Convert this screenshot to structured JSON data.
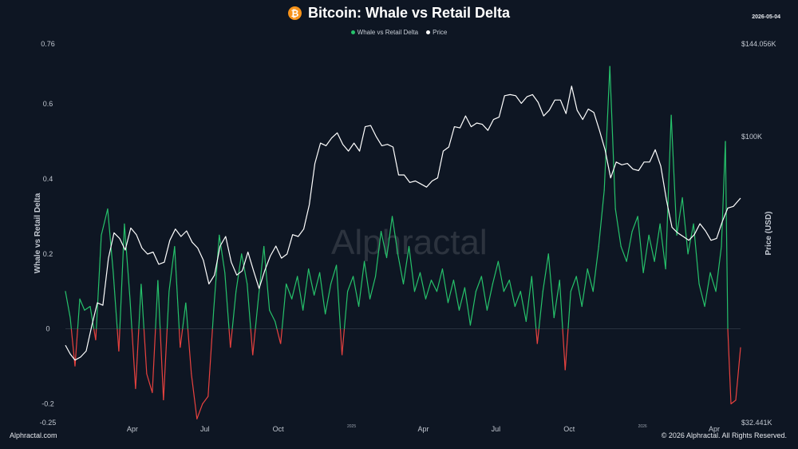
{
  "header": {
    "title": "Bitcoin: Whale vs Retail Delta",
    "date": "2026-05-04",
    "icon": "bitcoin-icon"
  },
  "legend": {
    "delta": "Whale vs Retail Delta",
    "price": "Price"
  },
  "footer": {
    "left": "Alphractal.com",
    "right": "© 2026 Alphractal. All Rights Reserved."
  },
  "watermark": "Alphractal",
  "colors": {
    "positive": "#26c26b",
    "negative": "#e8423f",
    "price": "#ffffff",
    "background": "#0e1623",
    "brand": "#f7931a"
  },
  "chart_data": {
    "type": "line",
    "title": "Bitcoin: Whale vs Retail Delta",
    "ylabel": "Whale vs Retail Delta",
    "y2label": "Price (USD)",
    "ylim": [
      -0.25,
      0.76
    ],
    "y2_scale": "log",
    "y2lim": [
      32441,
      144056
    ],
    "y_ticks": [
      "0.76",
      "0.6",
      "0.4",
      "0.2",
      "0",
      "-0.2",
      "-0.25"
    ],
    "y2_ticks": [
      {
        "label": "$144.056K",
        "value": 144056
      },
      {
        "label": "$100K",
        "value": 100000
      },
      {
        "label": "$32.441K",
        "value": 32441
      }
    ],
    "x_ticks": [
      {
        "label": "Apr",
        "date": "2024-04-01"
      },
      {
        "label": "Jul",
        "date": "2024-07-01"
      },
      {
        "label": "Oct",
        "date": "2024-10-01"
      },
      {
        "label": "2025",
        "date": "2025-01-01",
        "minor": true
      },
      {
        "label": "Apr",
        "date": "2025-04-01"
      },
      {
        "label": "Jul",
        "date": "2025-07-01"
      },
      {
        "label": "Oct",
        "date": "2025-10-01"
      },
      {
        "label": "2026",
        "date": "2026-01-01",
        "minor": true
      },
      {
        "label": "Apr",
        "date": "2026-04-01"
      }
    ],
    "xlim": [
      "2024-01-08",
      "2026-05-04"
    ],
    "grid": false,
    "legend_position": "top",
    "series": [
      {
        "name": "Whale vs Retail Delta",
        "axis": "left",
        "points": [
          [
            "2024-01-08",
            0.1
          ],
          [
            "2024-01-14",
            0.03
          ],
          [
            "2024-01-20",
            -0.1
          ],
          [
            "2024-01-26",
            0.08
          ],
          [
            "2024-02-01",
            0.05
          ],
          [
            "2024-02-08",
            0.06
          ],
          [
            "2024-02-15",
            -0.03
          ],
          [
            "2024-02-22",
            0.25
          ],
          [
            "2024-03-01",
            0.32
          ],
          [
            "2024-03-08",
            0.15
          ],
          [
            "2024-03-15",
            -0.06
          ],
          [
            "2024-03-22",
            0.28
          ],
          [
            "2024-03-29",
            0.08
          ],
          [
            "2024-04-05",
            -0.16
          ],
          [
            "2024-04-12",
            0.12
          ],
          [
            "2024-04-19",
            -0.12
          ],
          [
            "2024-04-26",
            -0.17
          ],
          [
            "2024-05-03",
            0.13
          ],
          [
            "2024-05-10",
            -0.19
          ],
          [
            "2024-05-17",
            0.1
          ],
          [
            "2024-05-24",
            0.22
          ],
          [
            "2024-05-31",
            -0.05
          ],
          [
            "2024-06-07",
            0.07
          ],
          [
            "2024-06-14",
            -0.12
          ],
          [
            "2024-06-21",
            -0.24
          ],
          [
            "2024-06-28",
            -0.2
          ],
          [
            "2024-07-05",
            -0.18
          ],
          [
            "2024-07-12",
            0.05
          ],
          [
            "2024-07-19",
            0.25
          ],
          [
            "2024-07-26",
            0.15
          ],
          [
            "2024-08-02",
            -0.05
          ],
          [
            "2024-08-09",
            0.1
          ],
          [
            "2024-08-16",
            0.2
          ],
          [
            "2024-08-23",
            0.12
          ],
          [
            "2024-08-30",
            -0.07
          ],
          [
            "2024-09-06",
            0.08
          ],
          [
            "2024-09-13",
            0.22
          ],
          [
            "2024-09-20",
            0.05
          ],
          [
            "2024-09-27",
            0.02
          ],
          [
            "2024-10-04",
            -0.04
          ],
          [
            "2024-10-11",
            0.12
          ],
          [
            "2024-10-18",
            0.08
          ],
          [
            "2024-10-25",
            0.14
          ],
          [
            "2024-11-01",
            0.05
          ],
          [
            "2024-11-08",
            0.16
          ],
          [
            "2024-11-15",
            0.09
          ],
          [
            "2024-11-22",
            0.15
          ],
          [
            "2024-11-29",
            0.04
          ],
          [
            "2024-12-06",
            0.12
          ],
          [
            "2024-12-13",
            0.17
          ],
          [
            "2024-12-20",
            -0.07
          ],
          [
            "2024-12-27",
            0.1
          ],
          [
            "2025-01-03",
            0.14
          ],
          [
            "2025-01-10",
            0.06
          ],
          [
            "2025-01-17",
            0.18
          ],
          [
            "2025-01-24",
            0.08
          ],
          [
            "2025-01-31",
            0.14
          ],
          [
            "2025-02-07",
            0.26
          ],
          [
            "2025-02-14",
            0.19
          ],
          [
            "2025-02-21",
            0.3
          ],
          [
            "2025-02-28",
            0.2
          ],
          [
            "2025-03-07",
            0.12
          ],
          [
            "2025-03-14",
            0.22
          ],
          [
            "2025-03-21",
            0.1
          ],
          [
            "2025-03-28",
            0.15
          ],
          [
            "2025-04-04",
            0.08
          ],
          [
            "2025-04-11",
            0.13
          ],
          [
            "2025-04-18",
            0.1
          ],
          [
            "2025-04-25",
            0.16
          ],
          [
            "2025-05-02",
            0.07
          ],
          [
            "2025-05-09",
            0.13
          ],
          [
            "2025-05-16",
            0.05
          ],
          [
            "2025-05-23",
            0.11
          ],
          [
            "2025-05-30",
            0.01
          ],
          [
            "2025-06-06",
            0.1
          ],
          [
            "2025-06-13",
            0.14
          ],
          [
            "2025-06-20",
            0.05
          ],
          [
            "2025-06-27",
            0.12
          ],
          [
            "2025-07-04",
            0.18
          ],
          [
            "2025-07-11",
            0.1
          ],
          [
            "2025-07-18",
            0.13
          ],
          [
            "2025-07-25",
            0.06
          ],
          [
            "2025-08-01",
            0.1
          ],
          [
            "2025-08-08",
            0.02
          ],
          [
            "2025-08-15",
            0.14
          ],
          [
            "2025-08-22",
            -0.04
          ],
          [
            "2025-08-29",
            0.1
          ],
          [
            "2025-09-05",
            0.2
          ],
          [
            "2025-09-12",
            0.03
          ],
          [
            "2025-09-19",
            0.13
          ],
          [
            "2025-09-26",
            -0.11
          ],
          [
            "2025-10-03",
            0.1
          ],
          [
            "2025-10-10",
            0.14
          ],
          [
            "2025-10-17",
            0.06
          ],
          [
            "2025-10-24",
            0.16
          ],
          [
            "2025-10-31",
            0.1
          ],
          [
            "2025-11-07",
            0.22
          ],
          [
            "2025-11-14",
            0.37
          ],
          [
            "2025-11-21",
            0.7
          ],
          [
            "2025-11-28",
            0.32
          ],
          [
            "2025-12-05",
            0.22
          ],
          [
            "2025-12-12",
            0.18
          ],
          [
            "2025-12-19",
            0.26
          ],
          [
            "2025-12-26",
            0.3
          ],
          [
            "2026-01-02",
            0.15
          ],
          [
            "2026-01-09",
            0.25
          ],
          [
            "2026-01-16",
            0.18
          ],
          [
            "2026-01-23",
            0.28
          ],
          [
            "2026-01-30",
            0.16
          ],
          [
            "2026-02-06",
            0.57
          ],
          [
            "2026-02-13",
            0.25
          ],
          [
            "2026-02-20",
            0.35
          ],
          [
            "2026-02-27",
            0.2
          ],
          [
            "2026-03-06",
            0.28
          ],
          [
            "2026-03-13",
            0.12
          ],
          [
            "2026-03-20",
            0.06
          ],
          [
            "2026-03-27",
            0.15
          ],
          [
            "2026-04-03",
            0.1
          ],
          [
            "2026-04-10",
            0.22
          ],
          [
            "2026-04-15",
            0.5
          ],
          [
            "2026-04-18",
            0.0
          ],
          [
            "2026-04-22",
            -0.2
          ],
          [
            "2026-04-28",
            -0.19
          ],
          [
            "2026-05-04",
            -0.05
          ]
        ]
      },
      {
        "name": "Price",
        "axis": "right",
        "points": [
          [
            "2024-01-08",
            44000
          ],
          [
            "2024-01-14",
            42500
          ],
          [
            "2024-01-20",
            41500
          ],
          [
            "2024-01-27",
            42000
          ],
          [
            "2024-02-03",
            43000
          ],
          [
            "2024-02-10",
            47500
          ],
          [
            "2024-02-17",
            52000
          ],
          [
            "2024-02-24",
            51500
          ],
          [
            "2024-03-02",
            62000
          ],
          [
            "2024-03-09",
            68500
          ],
          [
            "2024-03-16",
            67000
          ],
          [
            "2024-03-23",
            64000
          ],
          [
            "2024-03-30",
            69800
          ],
          [
            "2024-04-06",
            68000
          ],
          [
            "2024-04-13",
            64500
          ],
          [
            "2024-04-20",
            63000
          ],
          [
            "2024-04-27",
            63500
          ],
          [
            "2024-05-04",
            60500
          ],
          [
            "2024-05-11",
            61000
          ],
          [
            "2024-05-18",
            66500
          ],
          [
            "2024-05-25",
            69500
          ],
          [
            "2024-06-01",
            67500
          ],
          [
            "2024-06-08",
            69000
          ],
          [
            "2024-06-15",
            66000
          ],
          [
            "2024-06-22",
            64500
          ],
          [
            "2024-06-29",
            61500
          ],
          [
            "2024-07-06",
            56000
          ],
          [
            "2024-07-13",
            58000
          ],
          [
            "2024-07-20",
            65000
          ],
          [
            "2024-07-27",
            67500
          ],
          [
            "2024-08-03",
            61000
          ],
          [
            "2024-08-10",
            58000
          ],
          [
            "2024-08-17",
            59000
          ],
          [
            "2024-08-24",
            63500
          ],
          [
            "2024-08-31",
            59000
          ],
          [
            "2024-09-07",
            55000
          ],
          [
            "2024-09-14",
            59000
          ],
          [
            "2024-09-21",
            62500
          ],
          [
            "2024-09-28",
            65000
          ],
          [
            "2024-10-05",
            62000
          ],
          [
            "2024-10-12",
            63000
          ],
          [
            "2024-10-19",
            68000
          ],
          [
            "2024-10-26",
            67500
          ],
          [
            "2024-11-02",
            69500
          ],
          [
            "2024-11-09",
            76500
          ],
          [
            "2024-11-16",
            90000
          ],
          [
            "2024-11-23",
            97500
          ],
          [
            "2024-11-30",
            96500
          ],
          [
            "2024-12-07",
            99500
          ],
          [
            "2024-12-14",
            101500
          ],
          [
            "2024-12-21",
            97000
          ],
          [
            "2024-12-28",
            94500
          ],
          [
            "2025-01-04",
            97500
          ],
          [
            "2025-01-11",
            94500
          ],
          [
            "2025-01-18",
            104000
          ],
          [
            "2025-01-25",
            104500
          ],
          [
            "2025-02-01",
            100000
          ],
          [
            "2025-02-08",
            96500
          ],
          [
            "2025-02-15",
            97000
          ],
          [
            "2025-02-22",
            96000
          ],
          [
            "2025-03-01",
            86000
          ],
          [
            "2025-03-08",
            86000
          ],
          [
            "2025-03-15",
            83500
          ],
          [
            "2025-03-22",
            84000
          ],
          [
            "2025-03-29",
            83000
          ],
          [
            "2025-04-05",
            82000
          ],
          [
            "2025-04-12",
            84000
          ],
          [
            "2025-04-19",
            85000
          ],
          [
            "2025-04-26",
            94500
          ],
          [
            "2025-05-03",
            96000
          ],
          [
            "2025-05-10",
            104000
          ],
          [
            "2025-05-17",
            103500
          ],
          [
            "2025-05-24",
            108500
          ],
          [
            "2025-05-31",
            104000
          ],
          [
            "2025-06-07",
            105500
          ],
          [
            "2025-06-14",
            105000
          ],
          [
            "2025-06-21",
            102500
          ],
          [
            "2025-06-28",
            107000
          ],
          [
            "2025-07-05",
            108000
          ],
          [
            "2025-07-12",
            117500
          ],
          [
            "2025-07-19",
            118000
          ],
          [
            "2025-07-26",
            117500
          ],
          [
            "2025-08-02",
            114000
          ],
          [
            "2025-08-09",
            117000
          ],
          [
            "2025-08-16",
            118000
          ],
          [
            "2025-08-23",
            114500
          ],
          [
            "2025-08-30",
            108500
          ],
          [
            "2025-09-06",
            111000
          ],
          [
            "2025-09-13",
            115500
          ],
          [
            "2025-09-20",
            115500
          ],
          [
            "2025-09-27",
            109500
          ],
          [
            "2025-10-04",
            122000
          ],
          [
            "2025-10-11",
            111000
          ],
          [
            "2025-10-18",
            107000
          ],
          [
            "2025-10-25",
            111500
          ],
          [
            "2025-11-01",
            110000
          ],
          [
            "2025-11-08",
            102500
          ],
          [
            "2025-11-15",
            95000
          ],
          [
            "2025-11-22",
            85000
          ],
          [
            "2025-11-29",
            90500
          ],
          [
            "2025-12-06",
            89500
          ],
          [
            "2025-12-13",
            90000
          ],
          [
            "2025-12-20",
            88000
          ],
          [
            "2025-12-27",
            87500
          ],
          [
            "2026-01-03",
            90500
          ],
          [
            "2026-01-10",
            90500
          ],
          [
            "2026-01-17",
            95000
          ],
          [
            "2026-01-24",
            89000
          ],
          [
            "2026-01-31",
            78000
          ],
          [
            "2026-02-07",
            70000
          ],
          [
            "2026-02-14",
            68500
          ],
          [
            "2026-02-21",
            67500
          ],
          [
            "2026-02-28",
            66500
          ],
          [
            "2026-03-07",
            68000
          ],
          [
            "2026-03-14",
            71000
          ],
          [
            "2026-03-21",
            69000
          ],
          [
            "2026-03-28",
            66500
          ],
          [
            "2026-04-04",
            67000
          ],
          [
            "2026-04-11",
            71500
          ],
          [
            "2026-04-18",
            75500
          ],
          [
            "2026-04-25",
            76000
          ],
          [
            "2026-05-04",
            78500
          ]
        ]
      }
    ]
  }
}
